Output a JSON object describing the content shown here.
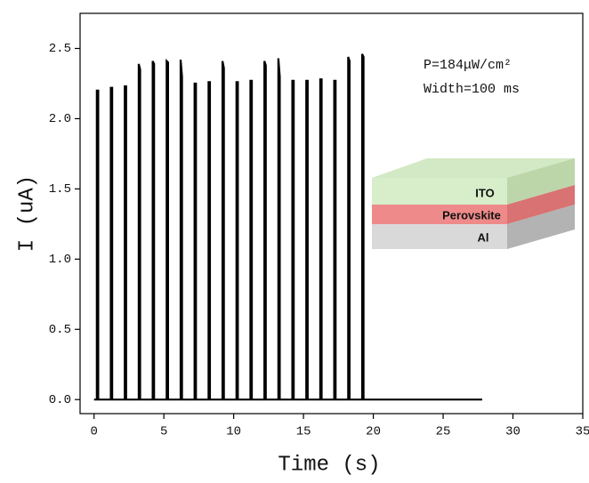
{
  "chart_data": {
    "type": "line",
    "x_label": "Time (s)",
    "y_label": "I (uA)",
    "annotations": [
      "P=184μW/cm²",
      "Width=100 ms"
    ],
    "inset_labels": [
      "ITO",
      "Perovskite",
      "Al"
    ],
    "color": "#000000",
    "xlim": [
      -1,
      35
    ],
    "ylim": [
      -0.1,
      2.75
    ],
    "xticks": [
      0,
      5,
      10,
      15,
      20,
      25,
      30,
      35
    ],
    "yticks": [
      {
        "value": 0,
        "label": "0.0"
      },
      0.5,
      {
        "value": 1,
        "label": "1.0"
      },
      1.5,
      {
        "value": 2,
        "label": "2.0"
      },
      2.5
    ],
    "x": [
      0,
      0.2,
      0.2,
      0.3,
      0.3,
      1.2,
      1.2,
      1.3,
      1.3,
      2.2,
      2.2,
      2.3,
      2.3,
      3.2,
      3.2,
      3.3,
      3.3,
      4.2,
      4.2,
      4.3,
      4.3,
      5.2,
      5.2,
      5.3,
      5.3,
      6.2,
      6.2,
      6.3,
      6.3,
      7.2,
      7.2,
      7.3,
      7.3,
      8.2,
      8.2,
      8.3,
      8.3,
      9.2,
      9.2,
      9.3,
      9.3,
      10.2,
      10.2,
      10.3,
      10.3,
      11.2,
      11.2,
      11.3,
      11.3,
      12.2,
      12.2,
      12.3,
      12.3,
      13.2,
      13.2,
      13.3,
      13.3,
      14.2,
      14.2,
      14.3,
      14.3,
      15.2,
      15.2,
      15.3,
      15.3,
      16.2,
      16.2,
      16.3,
      16.3,
      17.2,
      17.2,
      17.3,
      17.3,
      18.2,
      18.2,
      18.3,
      18.3,
      19.2,
      19.2,
      19.3,
      19.3,
      27.8
    ],
    "y": [
      0,
      0,
      2.2,
      2.2,
      0,
      0,
      2.22,
      2.22,
      0,
      0,
      2.23,
      2.23,
      0,
      0,
      2.39,
      2.35,
      0,
      0,
      2.41,
      2.39,
      0,
      0,
      2.41,
      2.4,
      0,
      0,
      2.42,
      2.3,
      0,
      0,
      2.25,
      2.25,
      0,
      0,
      2.26,
      2.26,
      0,
      0,
      2.41,
      2.36,
      0,
      0,
      2.26,
      2.26,
      0,
      0,
      2.27,
      2.27,
      0,
      0,
      2.41,
      2.38,
      0,
      0,
      2.43,
      2.3,
      0,
      0,
      2.27,
      2.27,
      0,
      0,
      2.27,
      2.27,
      0,
      0,
      2.28,
      2.28,
      0,
      0,
      2.27,
      2.27,
      0,
      0,
      2.44,
      2.41,
      0,
      0,
      2.46,
      2.44,
      0,
      0
    ]
  }
}
